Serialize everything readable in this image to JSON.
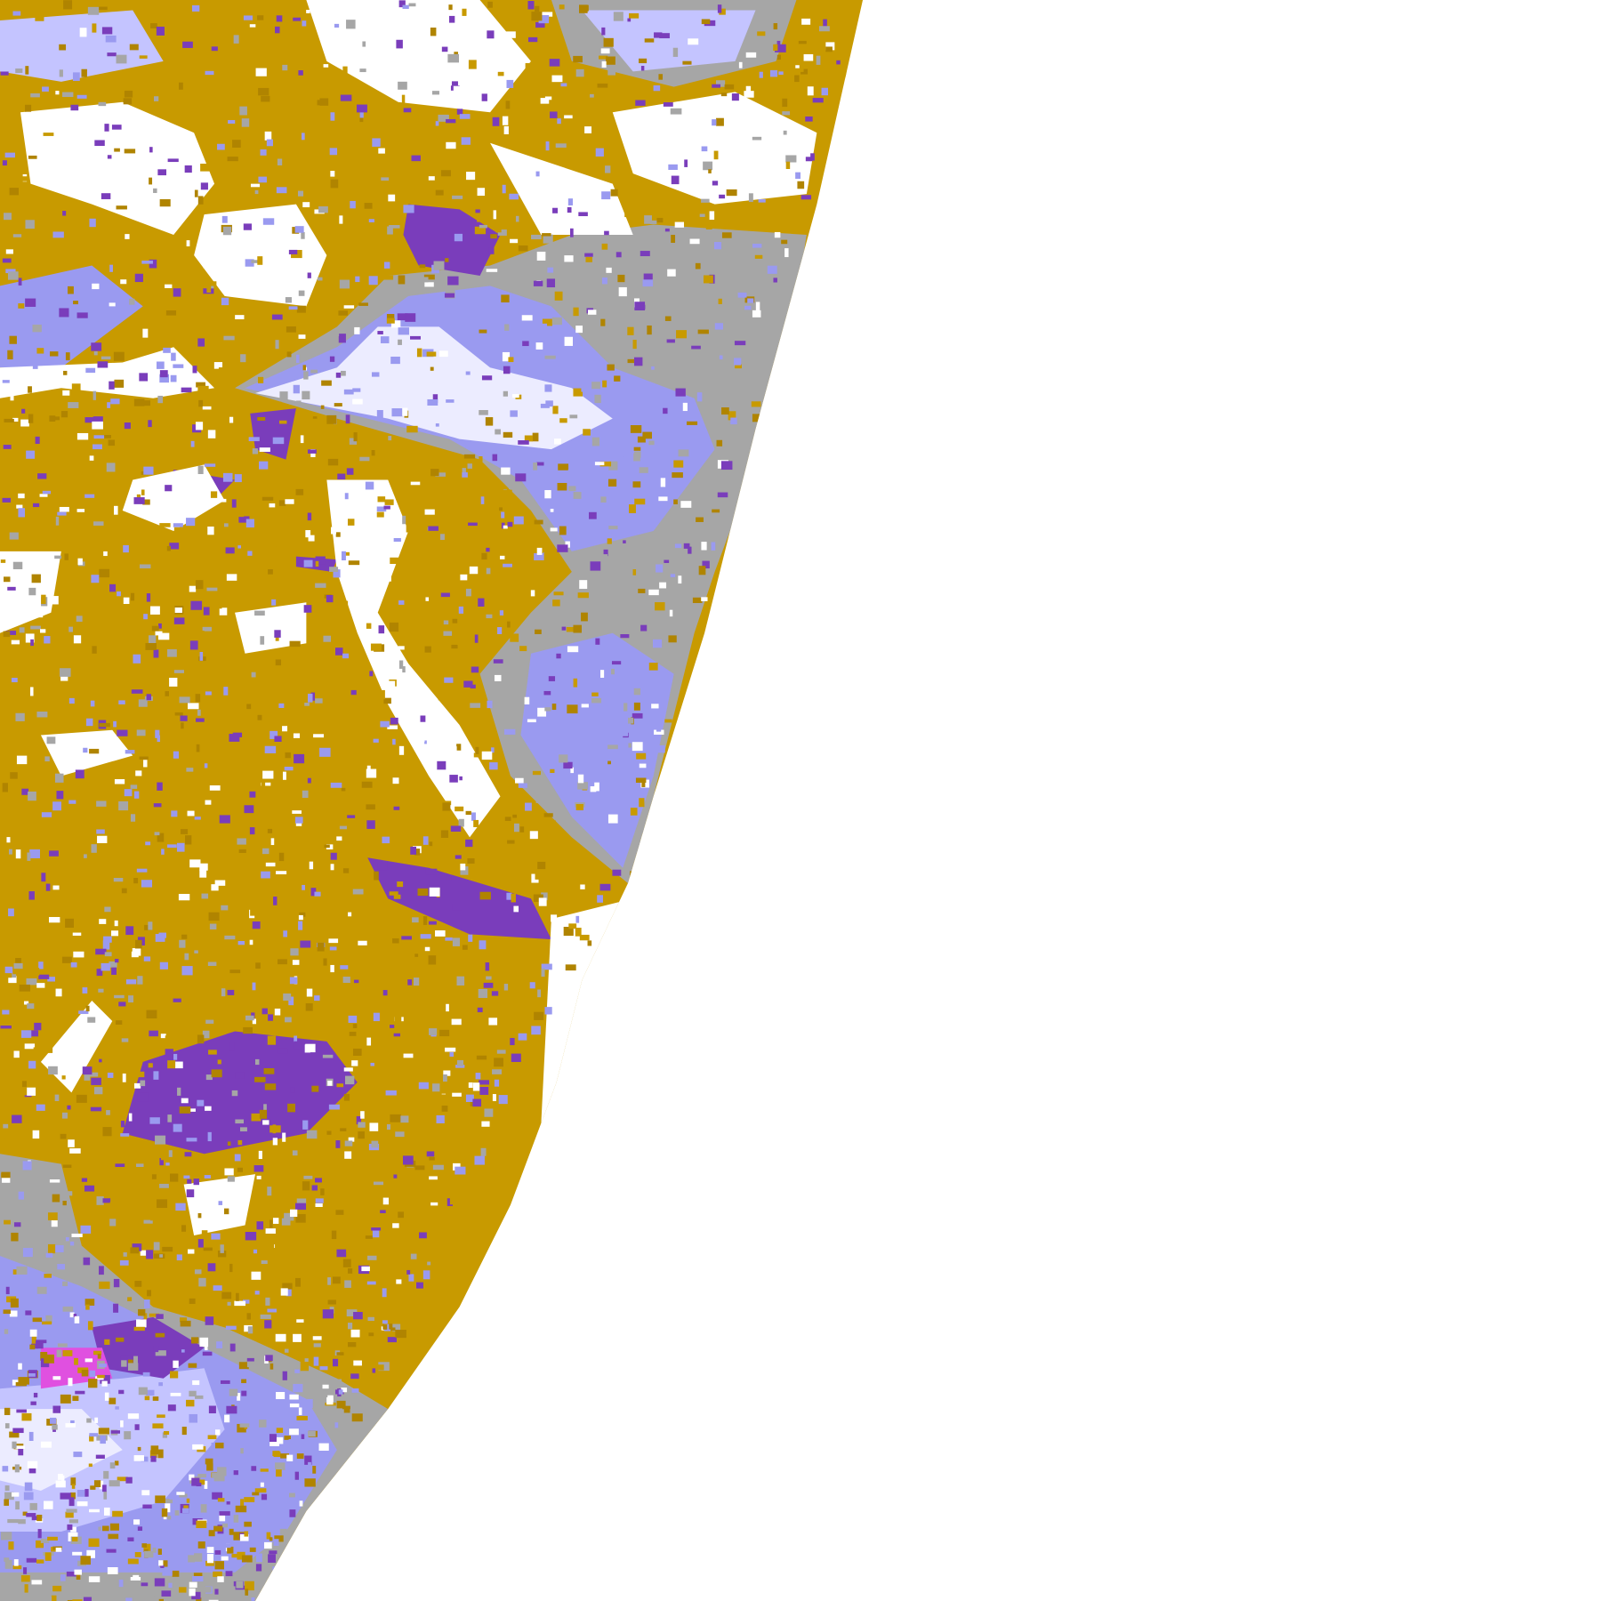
{
  "image": {
    "kind": "satellite cloud-classification composite (partial disk view)",
    "colors": {
      "background": "#ffffff",
      "gold": "#c89a00",
      "dark_gold": "#b08400",
      "purple": "#7a3dbb",
      "magenta": "#e050e0",
      "gray": "#a6a6a6",
      "periwinkle": "#9a9af0",
      "lavender": "#c4c4ff",
      "pale_lavender": "#ececff"
    }
  }
}
